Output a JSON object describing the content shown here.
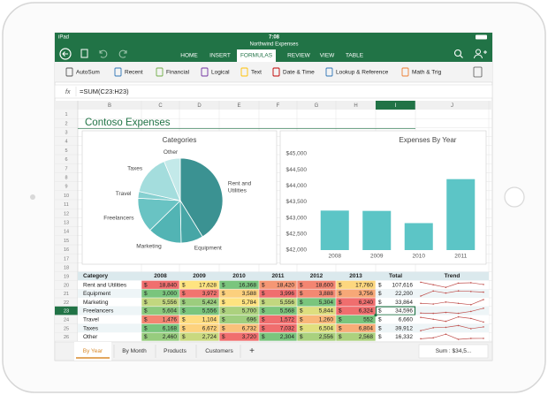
{
  "status": {
    "device": "iPad",
    "time": "7:08"
  },
  "title": "Northwind Expenses",
  "tabs": [
    "HOME",
    "INSERT",
    "FORMULAS",
    "REVIEW",
    "VIEW",
    "TABLE"
  ],
  "ribbon": [
    "AutoSum",
    "Recent",
    "Financial",
    "Logical",
    "Text",
    "Date & Time",
    "Lookup & Reference",
    "Math & Trig"
  ],
  "formula_bar": {
    "label": "fx",
    "formula": "=SUM(C23:H23)"
  },
  "columns": [
    "B",
    "C",
    "D",
    "E",
    "F",
    "G",
    "H",
    "I",
    "J"
  ],
  "row_numbers": [
    1,
    2,
    3,
    4,
    5,
    6,
    7,
    8,
    9,
    10,
    11,
    12,
    13,
    14,
    15,
    16,
    17,
    18,
    19,
    20,
    21,
    22,
    23,
    24,
    25,
    26
  ],
  "sheet_title": "Contoso Expenses",
  "chart_data": [
    {
      "type": "pie",
      "title": "Categories",
      "categories": [
        "Rent and Utilities",
        "Equipment",
        "Marketing",
        "Freelancers",
        "Travel",
        "Taxes",
        "Other"
      ],
      "values": [
        107616,
        22200,
        33864,
        34596,
        6660,
        39912,
        16332
      ],
      "colors": [
        "#3b9292",
        "#47a6a6",
        "#52b4b4",
        "#69c3c3",
        "#86d0d0",
        "#a4dddd",
        "#c3e9e9"
      ]
    },
    {
      "type": "bar",
      "title": "Expenses By Year",
      "categories": [
        "2008",
        "2009",
        "2010",
        "2011"
      ],
      "values": [
        43230,
        43220,
        42840,
        44210
      ],
      "color": "#5cc5c6",
      "ylim": [
        42000,
        45000
      ],
      "yticks": [
        {
          "value": 42000,
          "label": "$42,000"
        },
        {
          "value": 42500,
          "label": "$42,500"
        },
        {
          "value": 43000,
          "label": "$43,000"
        },
        {
          "value": 43500,
          "label": "$43,500"
        },
        {
          "value": 44000,
          "label": "$44,000"
        },
        {
          "value": 44500,
          "label": "$44,500"
        },
        {
          "value": 45000,
          "label": "$45,000"
        }
      ],
      "grid": false
    }
  ],
  "table": {
    "currency": "$",
    "header": [
      "Category",
      "2008",
      "2009",
      "2010",
      "2011",
      "2012",
      "2013",
      "Total",
      "Trend"
    ],
    "rows": [
      {
        "category": "Rent and Utilities",
        "values": [
          "18,840",
          "17,628",
          "16,368",
          "18,420",
          "18,600",
          "17,760"
        ],
        "total": "107,616"
      },
      {
        "category": "Equipment",
        "values": [
          "3,000",
          "3,972",
          "3,588",
          "3,996",
          "3,888",
          "3,756"
        ],
        "total": "22,200"
      },
      {
        "category": "Marketing",
        "values": [
          "5,556",
          "5,424",
          "5,784",
          "5,556",
          "5,304",
          "6,240"
        ],
        "total": "33,864"
      },
      {
        "category": "Freelancers",
        "values": [
          "5,604",
          "5,556",
          "5,700",
          "5,568",
          "5,844",
          "6,324"
        ],
        "total": "34,596"
      },
      {
        "category": "Travel",
        "values": [
          "1,476",
          "1,104",
          "696",
          "1,572",
          "1,260",
          "552"
        ],
        "total": "6,660"
      },
      {
        "category": "Taxes",
        "values": [
          "6,168",
          "6,672",
          "6,732",
          "7,032",
          "6,504",
          "6,804"
        ],
        "total": "39,912"
      },
      {
        "category": "Other",
        "values": [
          "2,460",
          "2,724",
          "3,720",
          "2,304",
          "2,556",
          "2,568"
        ],
        "total": "16,332"
      }
    ]
  },
  "sheet_tabs": [
    "By Year",
    "By Month",
    "Products",
    "Customers",
    "+"
  ],
  "status_sum": "Sum : $34,5..."
}
